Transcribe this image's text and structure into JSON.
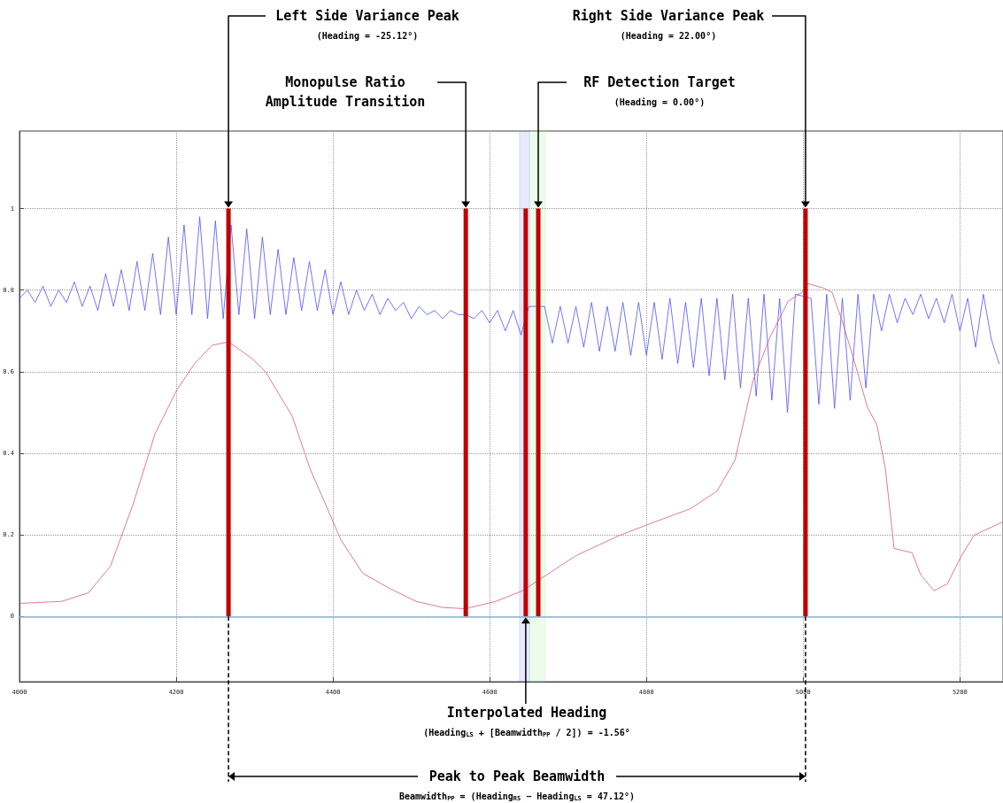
{
  "chart_data": {
    "type": "line",
    "xlim": [
      4000,
      5255
    ],
    "xticks": [
      4000,
      4200,
      4400,
      4600,
      4800,
      5000,
      5200
    ],
    "ylim": [
      -0.16,
      1.19
    ],
    "yticks": [
      0,
      0.2,
      0.4,
      0.6,
      0.8,
      1
    ],
    "grid": true,
    "series": [
      {
        "color": "#5050ff",
        "x": [
          4000,
          4010,
          4020,
          4030,
          4040,
          4050,
          4060,
          4070,
          4080,
          4090,
          4100,
          4110,
          4120,
          4130,
          4140,
          4150,
          4160,
          4170,
          4180,
          4190,
          4200,
          4210,
          4220,
          4230,
          4240,
          4250,
          4260,
          4270,
          4280,
          4290,
          4300,
          4310,
          4320,
          4330,
          4340,
          4350,
          4360,
          4370,
          4380,
          4390,
          4400,
          4410,
          4420,
          4430,
          4440,
          4450,
          4460,
          4470,
          4480,
          4490,
          4500,
          4510,
          4520,
          4530,
          4540,
          4550,
          4560,
          4570,
          4580,
          4590,
          4600,
          4610,
          4620,
          4630,
          4640,
          4650,
          4660,
          4670,
          4680,
          4690,
          4700,
          4710,
          4720,
          4730,
          4740,
          4750,
          4760,
          4770,
          4780,
          4790,
          4800,
          4810,
          4820,
          4830,
          4840,
          4850,
          4860,
          4870,
          4880,
          4890,
          4900,
          4910,
          4920,
          4930,
          4940,
          4950,
          4960,
          4970,
          4980,
          4990,
          5000,
          5010,
          5020,
          5030,
          5040,
          5050,
          5060,
          5070,
          5080,
          5090,
          5100,
          5110,
          5120,
          5130,
          5140,
          5150,
          5160,
          5170,
          5180,
          5190,
          5200,
          5210,
          5220,
          5230,
          5240,
          5250
        ],
        "values": [
          0.78,
          0.8,
          0.77,
          0.81,
          0.76,
          0.8,
          0.77,
          0.82,
          0.76,
          0.81,
          0.75,
          0.84,
          0.76,
          0.85,
          0.75,
          0.87,
          0.75,
          0.89,
          0.74,
          0.93,
          0.74,
          0.96,
          0.74,
          0.98,
          0.73,
          0.97,
          0.73,
          0.96,
          0.74,
          0.95,
          0.73,
          0.93,
          0.74,
          0.9,
          0.74,
          0.88,
          0.75,
          0.87,
          0.75,
          0.85,
          0.74,
          0.82,
          0.74,
          0.8,
          0.75,
          0.79,
          0.74,
          0.78,
          0.75,
          0.77,
          0.73,
          0.76,
          0.74,
          0.75,
          0.73,
          0.75,
          0.74,
          0.74,
          0.73,
          0.75,
          0.72,
          0.75,
          0.7,
          0.75,
          0.69,
          0.76,
          null,
          0.76,
          0.67,
          0.76,
          0.67,
          0.76,
          0.66,
          0.77,
          0.65,
          0.76,
          0.65,
          0.77,
          0.64,
          0.77,
          0.64,
          0.77,
          0.63,
          0.78,
          0.62,
          0.77,
          0.61,
          0.78,
          0.59,
          0.78,
          0.58,
          0.79,
          0.56,
          0.78,
          0.54,
          0.79,
          0.53,
          0.78,
          0.5,
          0.79,
          null,
          0.78,
          0.52,
          0.79,
          0.51,
          0.78,
          0.53,
          0.79,
          0.56,
          0.79,
          0.7,
          0.79,
          0.72,
          0.78,
          0.74,
          0.79,
          0.73,
          0.78,
          0.72,
          0.79,
          0.7,
          0.78,
          0.66,
          0.79,
          0.68,
          0.62
        ]
      },
      {
        "color": "#d9587a",
        "x": [
          4000,
          4054,
          4088,
          4116,
          4145,
          4173,
          4201,
          4224,
          4246,
          4267,
          4297,
          4314,
          4348,
          4371,
          4393,
          4410,
          4438,
          4472,
          4506,
          4540,
          4569,
          4608,
          4642,
          4664,
          4710,
          4766,
          4811,
          4856,
          4890,
          4913,
          4936,
          4958,
          4981,
          4998,
          5006,
          5026,
          5037,
          5049,
          5066,
          5082,
          5094,
          5105,
          5116,
          5139,
          5150,
          5167,
          5184,
          5201,
          5218,
          5255
        ],
        "values": [
          0.032,
          0.037,
          0.058,
          0.123,
          0.275,
          0.448,
          0.556,
          0.621,
          0.665,
          0.673,
          0.632,
          0.6,
          0.491,
          0.361,
          0.264,
          0.188,
          0.106,
          0.069,
          0.037,
          0.022,
          0.019,
          0.037,
          0.063,
          0.091,
          0.149,
          0.199,
          0.232,
          0.264,
          0.307,
          0.383,
          0.578,
          0.686,
          0.773,
          0.794,
          0.816,
          0.805,
          0.794,
          0.729,
          0.621,
          0.513,
          0.47,
          0.361,
          0.167,
          0.156,
          0.102,
          0.063,
          0.08,
          0.145,
          0.199,
          0.232
        ]
      },
      {
        "color": "#c00000",
        "x": [
          4266.7,
          4266.7
        ],
        "values": [
          0,
          1
        ]
      },
      {
        "color": "#c00000",
        "x": [
          4569.5,
          4569.5
        ],
        "values": [
          0,
          1
        ]
      },
      {
        "color": "#c00000",
        "x": [
          4646,
          4646
        ],
        "values": [
          0,
          1
        ]
      },
      {
        "color": "#c00000",
        "x": [
          4662,
          4662
        ],
        "values": [
          0,
          1
        ]
      },
      {
        "color": "#c00000",
        "x": [
          5003,
          5003
        ],
        "values": [
          0,
          1
        ]
      }
    ],
    "ref_lines": [
      {
        "axis": "y",
        "value": 0,
        "color": "#8fb4d8"
      }
    ],
    "bands": [
      {
        "axis": "x",
        "from": 4638,
        "to": 4651,
        "color": "#8080ff"
      },
      {
        "axis": "x",
        "from": 4651,
        "to": 4671,
        "color": "#90ee90"
      }
    ],
    "annotations": [
      {
        "text": "Left Side Variance Peak\n(Heading = -25.12°)",
        "x": 4266.7,
        "y": 1
      },
      {
        "text": "Monopulse Ratio\nAmplitude Transition",
        "x": 4569.5,
        "y": 1
      },
      {
        "text": "RF Detection Target\n(Heading = 0.00°)",
        "x": 4662,
        "y": 1
      },
      {
        "text": "Right Side Variance Peak\n(Heading = 22.00°)",
        "x": 5003,
        "y": 1
      },
      {
        "text": "Interpolated Heading\n(Heading$_{LS}$ + [Beamwidth$_{PP}$ / 2]) = -1.56°",
        "x": 4646,
        "y": 0
      },
      "Peak to Peak Beamwidth\nBeamwidth$_{PP}$ = (Heading$_{RS}$ − Heading$_{LS}$ = 47.12°)"
    ]
  }
}
